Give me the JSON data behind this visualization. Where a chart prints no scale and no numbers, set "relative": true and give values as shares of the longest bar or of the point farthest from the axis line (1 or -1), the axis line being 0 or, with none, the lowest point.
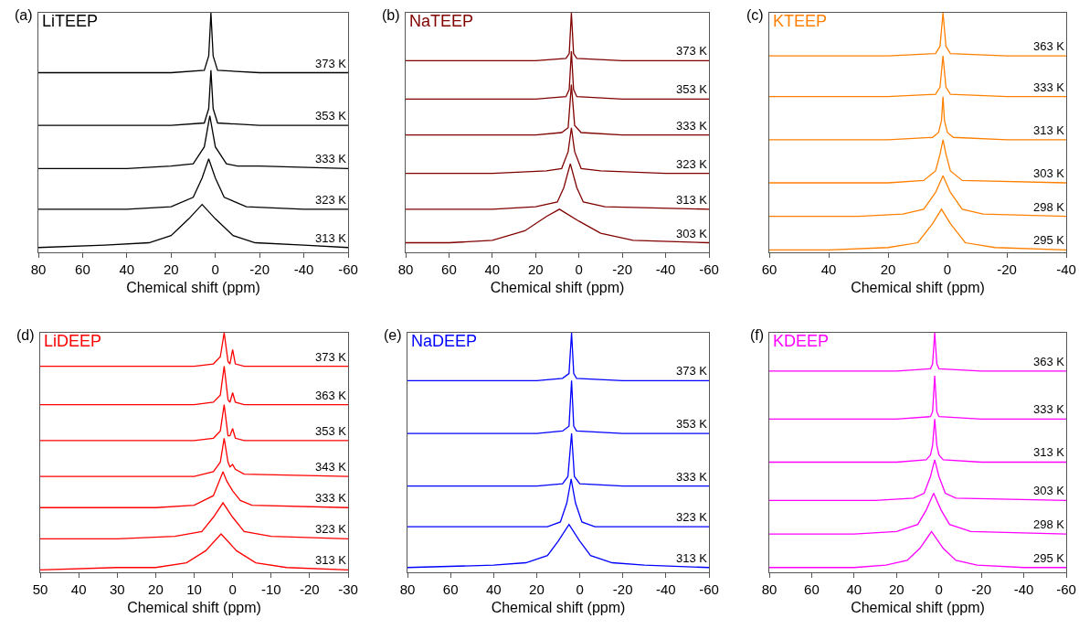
{
  "chart_data": [
    {
      "type": "line",
      "title": "LiTEEP",
      "annotations": [
        "(a)"
      ],
      "xlabel": "Chemical shift (ppm)",
      "xlim": [
        80,
        -60
      ],
      "xticks": [
        80,
        60,
        40,
        20,
        0,
        -20,
        -40,
        -60
      ],
      "relative": true,
      "series": [
        {
          "name": "373 K",
          "color": "#000000",
          "x": [
            80,
            20,
            5,
            3,
            2,
            1,
            -1,
            -20,
            -60
          ],
          "values": [
            0.75,
            0.75,
            0.76,
            0.82,
            1.0,
            0.82,
            0.76,
            0.75,
            0.75
          ]
        },
        {
          "name": "353 K",
          "color": "#000000",
          "x": [
            80,
            20,
            5,
            3,
            2,
            1,
            -1,
            -20,
            -60
          ],
          "values": [
            0.53,
            0.53,
            0.54,
            0.6,
            0.76,
            0.6,
            0.54,
            0.53,
            0.53
          ]
        },
        {
          "name": "333 K",
          "color": "#000000",
          "x": [
            80,
            40,
            20,
            10,
            5,
            2.5,
            0,
            -5,
            -10,
            -20,
            -60
          ],
          "values": [
            0.35,
            0.35,
            0.36,
            0.37,
            0.44,
            0.57,
            0.44,
            0.37,
            0.36,
            0.36,
            0.35
          ]
        },
        {
          "name": "323 K",
          "color": "#000000",
          "x": [
            80,
            40,
            20,
            10,
            6,
            3,
            0,
            -4,
            -14,
            -40,
            -60
          ],
          "values": [
            0.18,
            0.18,
            0.19,
            0.23,
            0.31,
            0.39,
            0.31,
            0.23,
            0.19,
            0.18,
            0.18
          ]
        },
        {
          "name": "313 K",
          "color": "#000000",
          "x": [
            80,
            50,
            30,
            20,
            12,
            6,
            0,
            -8,
            -18,
            -40,
            -60
          ],
          "values": [
            0.02,
            0.03,
            0.04,
            0.07,
            0.14,
            0.2,
            0.14,
            0.07,
            0.04,
            0.03,
            0.02
          ]
        }
      ]
    },
    {
      "type": "line",
      "title": "NaTEEP",
      "annotations": [
        "(b)"
      ],
      "xlabel": "Chemical shift (ppm)",
      "xlim": [
        80,
        -60
      ],
      "xticks": [
        80,
        60,
        40,
        20,
        0,
        -20,
        -40,
        -60
      ],
      "relative": true,
      "series": [
        {
          "name": "373 K",
          "color": "#800000",
          "x": [
            80,
            20,
            6,
            4.5,
            3.5,
            2.5,
            1,
            -20,
            -60
          ],
          "values": [
            0.8,
            0.8,
            0.81,
            0.83,
            1.0,
            0.83,
            0.81,
            0.8,
            0.8
          ]
        },
        {
          "name": "353 K",
          "color": "#800000",
          "x": [
            80,
            20,
            6,
            4.5,
            3.5,
            2.5,
            1,
            -20,
            -60
          ],
          "values": [
            0.64,
            0.64,
            0.65,
            0.68,
            0.84,
            0.68,
            0.65,
            0.64,
            0.64
          ]
        },
        {
          "name": "333 K",
          "color": "#800000",
          "x": [
            80,
            20,
            8,
            5,
            3.5,
            2,
            -1,
            -20,
            -60
          ],
          "values": [
            0.49,
            0.49,
            0.5,
            0.52,
            0.7,
            0.53,
            0.5,
            0.49,
            0.49
          ]
        },
        {
          "name": "323 K",
          "color": "#800000",
          "x": [
            80,
            40,
            15,
            8,
            5,
            3.5,
            2,
            -1,
            -10,
            -40,
            -60
          ],
          "values": [
            0.33,
            0.33,
            0.34,
            0.35,
            0.42,
            0.52,
            0.42,
            0.35,
            0.34,
            0.33,
            0.33
          ]
        },
        {
          "name": "313 K",
          "color": "#800000",
          "x": [
            80,
            40,
            20,
            10,
            7,
            4,
            1,
            -2,
            -12,
            -60
          ],
          "values": [
            0.18,
            0.18,
            0.19,
            0.21,
            0.27,
            0.37,
            0.27,
            0.21,
            0.19,
            0.18
          ]
        },
        {
          "name": "303 K",
          "color": "#800000",
          "x": [
            80,
            60,
            40,
            25,
            15,
            9,
            0,
            -10,
            -25,
            -60
          ],
          "values": [
            0.04,
            0.04,
            0.05,
            0.09,
            0.15,
            0.18,
            0.13,
            0.08,
            0.05,
            0.04
          ]
        }
      ]
    },
    {
      "type": "line",
      "title": "KTEEP",
      "annotations": [
        "(c)"
      ],
      "xlabel": "Chemical shift (ppm)",
      "xlim": [
        60,
        -40
      ],
      "xticks": [
        60,
        40,
        20,
        0,
        -20,
        -40
      ],
      "relative": true,
      "series": [
        {
          "name": "363 K",
          "color": "#ff8000",
          "x": [
            60,
            20,
            4,
            2.5,
            1.5,
            0.5,
            -1,
            -20,
            -40
          ],
          "values": [
            0.82,
            0.82,
            0.83,
            0.86,
            1.0,
            0.86,
            0.83,
            0.82,
            0.82
          ]
        },
        {
          "name": "333 K",
          "color": "#ff8000",
          "x": [
            60,
            20,
            4,
            2.5,
            1.5,
            0.5,
            -1,
            -20,
            -40
          ],
          "values": [
            0.65,
            0.65,
            0.66,
            0.69,
            0.82,
            0.69,
            0.66,
            0.65,
            0.65
          ]
        },
        {
          "name": "313 K",
          "color": "#ff8000",
          "x": [
            60,
            20,
            5,
            3,
            2,
            1.5,
            1,
            0,
            -2,
            -20,
            -40
          ],
          "values": [
            0.47,
            0.47,
            0.48,
            0.5,
            0.55,
            0.65,
            0.55,
            0.5,
            0.48,
            0.47,
            0.47
          ]
        },
        {
          "name": "303 K",
          "color": "#ff8000",
          "x": [
            60,
            20,
            8,
            4,
            2.5,
            1.5,
            0.5,
            -1,
            -5,
            -40
          ],
          "values": [
            0.29,
            0.29,
            0.3,
            0.34,
            0.41,
            0.47,
            0.41,
            0.34,
            0.3,
            0.29
          ]
        },
        {
          "name": "298 K",
          "color": "#ff8000",
          "x": [
            60,
            30,
            15,
            8,
            4,
            1.5,
            -1,
            -5,
            -12,
            -40
          ],
          "values": [
            0.15,
            0.15,
            0.16,
            0.18,
            0.25,
            0.32,
            0.25,
            0.18,
            0.16,
            0.15
          ]
        },
        {
          "name": "295 K",
          "color": "#ff8000",
          "x": [
            60,
            40,
            20,
            10,
            5,
            2,
            -1,
            -6,
            -16,
            -40
          ],
          "values": [
            0.01,
            0.01,
            0.02,
            0.04,
            0.12,
            0.18,
            0.12,
            0.04,
            0.02,
            0.01
          ]
        }
      ]
    },
    {
      "type": "line",
      "title": "LiDEEP",
      "annotations": [
        "(d)"
      ],
      "xlabel": "Chemical shift (ppm)",
      "xlim": [
        50,
        -30
      ],
      "xticks": [
        50,
        40,
        30,
        20,
        10,
        0,
        -10,
        -20,
        -30
      ],
      "relative": true,
      "series": [
        {
          "name": "373 K",
          "color": "#ff0000",
          "x": [
            50,
            10,
            5,
            3.2,
            2.2,
            1.2,
            0.7,
            0,
            -0.7,
            -3,
            -30
          ],
          "values": [
            0.86,
            0.86,
            0.87,
            0.9,
            1.0,
            0.88,
            0.87,
            0.93,
            0.87,
            0.86,
            0.86
          ]
        },
        {
          "name": "363 K",
          "color": "#ff0000",
          "x": [
            50,
            10,
            5,
            3.2,
            2.2,
            1.2,
            0.7,
            0,
            -0.7,
            -3,
            -30
          ],
          "values": [
            0.7,
            0.7,
            0.71,
            0.74,
            0.86,
            0.72,
            0.71,
            0.75,
            0.71,
            0.7,
            0.7
          ]
        },
        {
          "name": "353 K",
          "color": "#ff0000",
          "x": [
            50,
            10,
            5,
            3.2,
            2.2,
            1.2,
            0.7,
            0,
            -0.7,
            -3,
            -30
          ],
          "values": [
            0.55,
            0.55,
            0.56,
            0.59,
            0.7,
            0.57,
            0.57,
            0.6,
            0.56,
            0.55,
            0.55
          ]
        },
        {
          "name": "343 K",
          "color": "#ff0000",
          "x": [
            50,
            10,
            5,
            3.2,
            2.2,
            1.2,
            0.7,
            0,
            -0.7,
            -3,
            -30
          ],
          "values": [
            0.4,
            0.4,
            0.42,
            0.46,
            0.56,
            0.46,
            0.44,
            0.45,
            0.43,
            0.41,
            0.4
          ]
        },
        {
          "name": "333 K",
          "color": "#ff0000",
          "x": [
            50,
            20,
            10,
            5,
            3.5,
            2.5,
            1.5,
            0,
            -2,
            -5,
            -30
          ],
          "values": [
            0.27,
            0.27,
            0.28,
            0.32,
            0.38,
            0.42,
            0.38,
            0.34,
            0.3,
            0.28,
            0.27
          ]
        },
        {
          "name": "323 K",
          "color": "#ff0000",
          "x": [
            50,
            30,
            15,
            8,
            5,
            2.5,
            0,
            -3,
            -10,
            -30
          ],
          "values": [
            0.14,
            0.14,
            0.15,
            0.17,
            0.23,
            0.29,
            0.23,
            0.17,
            0.15,
            0.14
          ]
        },
        {
          "name": "313 K",
          "color": "#ff0000",
          "x": [
            50,
            30,
            20,
            12,
            7,
            3,
            -1,
            -6,
            -14,
            -30
          ],
          "values": [
            0.01,
            0.02,
            0.02,
            0.04,
            0.09,
            0.16,
            0.09,
            0.04,
            0.02,
            0.01
          ]
        }
      ]
    },
    {
      "type": "line",
      "title": "NaDEEP",
      "annotations": [
        "(e)"
      ],
      "xlabel": "Chemical shift (ppm)",
      "xlim": [
        80,
        -60
      ],
      "xticks": [
        80,
        60,
        40,
        20,
        0,
        -20,
        -40,
        -60
      ],
      "relative": true,
      "series": [
        {
          "name": "373 K",
          "color": "#0000ff",
          "x": [
            80,
            20,
            8,
            5,
            3.8,
            2.8,
            1.5,
            -20,
            -60
          ],
          "values": [
            0.8,
            0.8,
            0.81,
            0.83,
            1.0,
            0.83,
            0.81,
            0.8,
            0.8
          ]
        },
        {
          "name": "353 K",
          "color": "#0000ff",
          "x": [
            80,
            20,
            8,
            5,
            3.8,
            2.8,
            1.5,
            -20,
            -60
          ],
          "values": [
            0.58,
            0.58,
            0.59,
            0.61,
            0.8,
            0.61,
            0.59,
            0.58,
            0.58
          ]
        },
        {
          "name": "333 K",
          "color": "#0000ff",
          "x": [
            80,
            20,
            8,
            5.5,
            3.8,
            2.5,
            0,
            -20,
            -60
          ],
          "values": [
            0.36,
            0.36,
            0.37,
            0.4,
            0.58,
            0.4,
            0.37,
            0.36,
            0.36
          ]
        },
        {
          "name": "323 K",
          "color": "#0000ff",
          "x": [
            80,
            40,
            15,
            9,
            6,
            4,
            2,
            -1,
            -7,
            -60
          ],
          "values": [
            0.19,
            0.19,
            0.19,
            0.21,
            0.29,
            0.39,
            0.29,
            0.21,
            0.19,
            0.19
          ]
        },
        {
          "name": "313 K",
          "color": "#0000ff",
          "x": [
            80,
            40,
            25,
            15,
            10,
            5,
            0,
            -5,
            -15,
            -30,
            -60
          ],
          "values": [
            0.02,
            0.03,
            0.04,
            0.07,
            0.13,
            0.2,
            0.13,
            0.07,
            0.04,
            0.03,
            0.02
          ]
        }
      ]
    },
    {
      "type": "line",
      "title": "KDEEP",
      "annotations": [
        "(f)"
      ],
      "xlabel": "Chemical shift (ppm)",
      "xlim": [
        80,
        -60
      ],
      "xticks": [
        80,
        60,
        40,
        20,
        0,
        -20,
        -40,
        -60
      ],
      "relative": true,
      "series": [
        {
          "name": "363 K",
          "color": "#ff00ff",
          "x": [
            80,
            20,
            4,
            3,
            2,
            1,
            0,
            -20,
            -60
          ],
          "values": [
            0.84,
            0.84,
            0.85,
            0.87,
            1.0,
            0.87,
            0.85,
            0.84,
            0.84
          ]
        },
        {
          "name": "333 K",
          "color": "#ff00ff",
          "x": [
            80,
            20,
            4,
            3,
            2,
            1,
            0,
            -20,
            -60
          ],
          "values": [
            0.64,
            0.64,
            0.65,
            0.67,
            0.82,
            0.67,
            0.65,
            0.64,
            0.64
          ]
        },
        {
          "name": "313 K",
          "color": "#ff00ff",
          "x": [
            80,
            20,
            6,
            4,
            3,
            2,
            1,
            0,
            -2,
            -20,
            -60
          ],
          "values": [
            0.46,
            0.46,
            0.47,
            0.49,
            0.53,
            0.64,
            0.53,
            0.49,
            0.47,
            0.46,
            0.46
          ]
        },
        {
          "name": "303 K",
          "color": "#ff00ff",
          "x": [
            80,
            30,
            12,
            7,
            4,
            2,
            0,
            -3,
            -8,
            -60
          ],
          "values": [
            0.3,
            0.3,
            0.31,
            0.33,
            0.4,
            0.47,
            0.4,
            0.33,
            0.31,
            0.3
          ]
        },
        {
          "name": "298 K",
          "color": "#ff00ff",
          "x": [
            80,
            40,
            20,
            10,
            6,
            2.5,
            -1,
            -5,
            -15,
            -60
          ],
          "values": [
            0.16,
            0.16,
            0.17,
            0.2,
            0.26,
            0.33,
            0.26,
            0.2,
            0.17,
            0.16
          ]
        },
        {
          "name": "295 K",
          "color": "#ff00ff",
          "x": [
            80,
            40,
            25,
            15,
            9,
            3.5,
            -2,
            -8,
            -18,
            -40,
            -60
          ],
          "values": [
            0.02,
            0.02,
            0.03,
            0.05,
            0.1,
            0.17,
            0.1,
            0.05,
            0.03,
            0.02,
            0.02
          ]
        }
      ]
    }
  ]
}
